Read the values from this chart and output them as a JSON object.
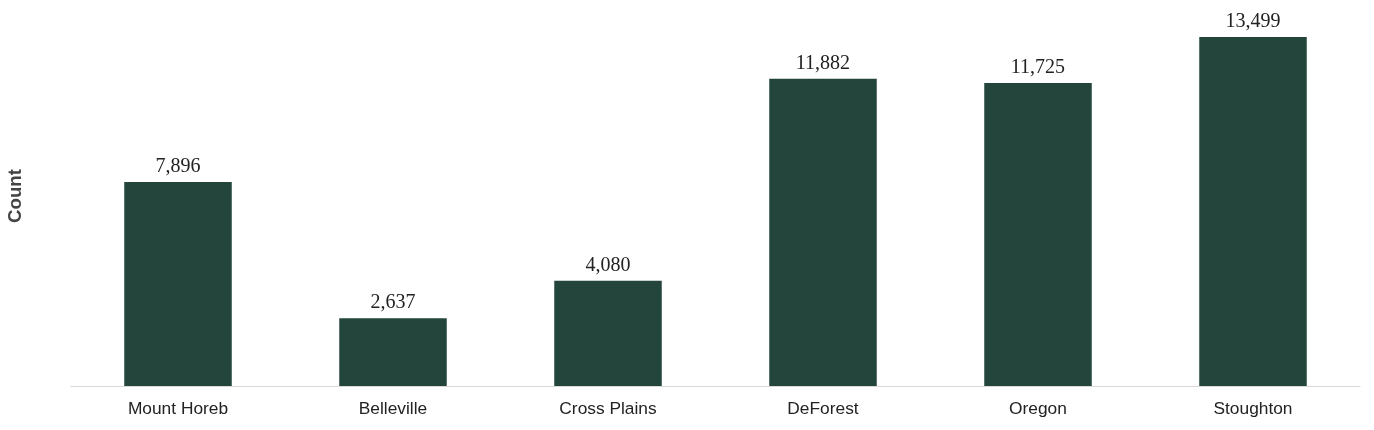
{
  "chart_data": {
    "type": "bar",
    "ylabel": "Count",
    "categories": [
      "Mount Horeb",
      "Belleville",
      "Cross Plains",
      "DeForest",
      "Oregon",
      "Stoughton"
    ],
    "values": [
      7896,
      2637,
      4080,
      11882,
      11725,
      13499
    ],
    "value_labels": [
      "7,896",
      "2,637",
      "4,080",
      "11,882",
      "11,725",
      "13,499"
    ],
    "color": "#24453c",
    "grid": false,
    "tick_labels": "x"
  }
}
